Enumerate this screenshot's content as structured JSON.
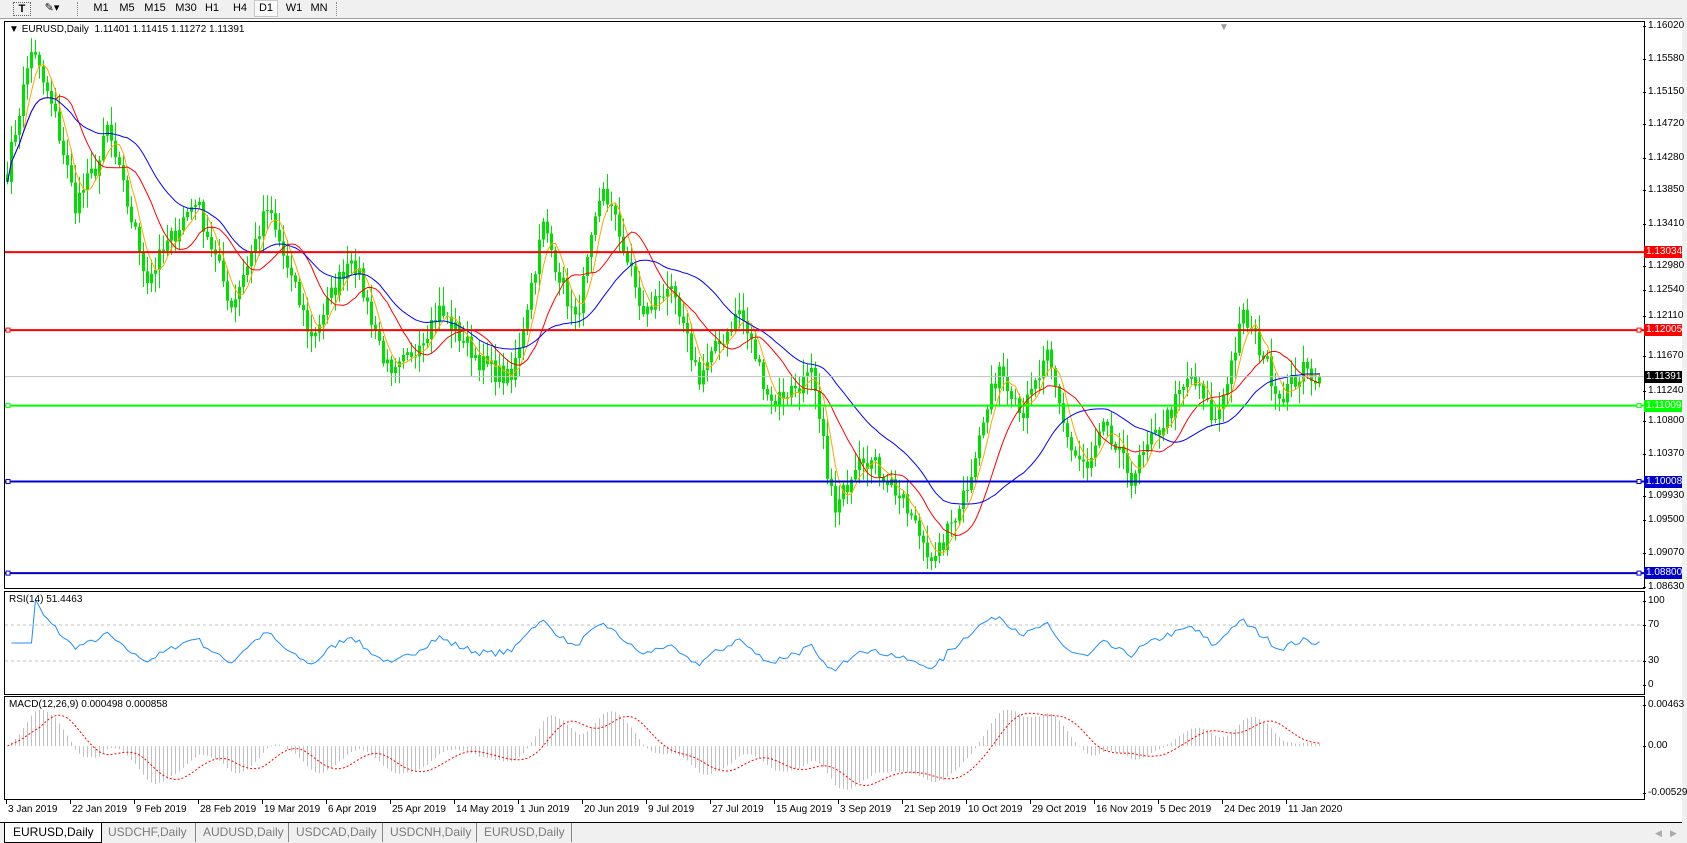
{
  "toolbar": {
    "icons": [
      "text-tool-icon",
      "line-tools-icon"
    ],
    "timeframes": [
      "M1",
      "M5",
      "M15",
      "M30",
      "H1",
      "H4",
      "D1",
      "W1",
      "MN"
    ],
    "active_timeframe": "D1"
  },
  "main": {
    "title": "EURUSD,Daily",
    "ohlc": "1.11401 1.11415 1.11272 1.11391",
    "price_axis": [
      "1.16020",
      "1.15580",
      "1.15150",
      "1.14720",
      "1.14280",
      "1.13850",
      "1.13410",
      "1.12980",
      "1.12540",
      "1.12110",
      "1.11670",
      "1.11240",
      "1.10800",
      "1.10370",
      "1.09930",
      "1.09500",
      "1.09070",
      "1.08630"
    ],
    "current_price": "1.11391",
    "levels": [
      {
        "price": "1.13034",
        "color": "#ff0000"
      },
      {
        "price": "1.12005",
        "color": "#ff0000"
      },
      {
        "price": "1.11009",
        "color": "#00ff00"
      },
      {
        "price": "1.10008",
        "color": "#0000cc"
      },
      {
        "price": "1.08800",
        "color": "#0000cc"
      }
    ]
  },
  "rsi": {
    "title": "RSI(14) 51.4463",
    "axis": [
      "100",
      "70",
      "30",
      "0"
    ]
  },
  "macd": {
    "title": "MACD(12,26,9) 0.000498 0.000858",
    "axis": [
      "0.00463",
      "0.00",
      "-0.00529"
    ]
  },
  "dates": [
    "3 Jan 2019",
    "22 Jan 2019",
    "9 Feb 2019",
    "28 Feb 2019",
    "19 Mar 2019",
    "6 Apr 2019",
    "25 Apr 2019",
    "14 May 2019",
    "1 Jun 2019",
    "20 Jun 2019",
    "9 Jul 2019",
    "27 Jul 2019",
    "15 Aug 2019",
    "3 Sep 2019",
    "21 Sep 2019",
    "10 Oct 2019",
    "29 Oct 2019",
    "16 Nov 2019",
    "5 Dec 2019",
    "24 Dec 2019",
    "11 Jan 2020"
  ],
  "tabs": [
    "EURUSD,Daily",
    "USDCHF,Daily",
    "AUDUSD,Daily",
    "USDCAD,Daily",
    "USDCNH,Daily",
    "EURUSD,Daily"
  ],
  "active_tab": 0,
  "colors": {
    "candle": "#00e000",
    "ma_fast": "#ffa500",
    "ma_mid": "#ff0000",
    "ma_slow": "#0000ff",
    "rsi": "#1e90ff",
    "macd_hist": "#c0c0c0",
    "macd_signal": "#ff0000"
  },
  "chart_data": {
    "type": "candlestick",
    "symbol": "EURUSD",
    "timeframe": "Daily",
    "ylim": [
      1.0863,
      1.1602
    ],
    "approx_close_path": [
      [
        0,
        1.141
      ],
      [
        6,
        1.1572
      ],
      [
        12,
        1.148
      ],
      [
        17,
        1.1367
      ],
      [
        23,
        1.1424
      ],
      [
        25,
        1.1466
      ],
      [
        35,
        1.1268
      ],
      [
        47,
        1.1374
      ],
      [
        56,
        1.1233
      ],
      [
        65,
        1.136
      ],
      [
        76,
        1.119
      ],
      [
        86,
        1.1302
      ],
      [
        96,
        1.1133
      ],
      [
        108,
        1.1226
      ],
      [
        119,
        1.1155
      ],
      [
        126,
        1.1133
      ],
      [
        134,
        1.1338
      ],
      [
        142,
        1.121
      ],
      [
        149,
        1.1389
      ],
      [
        154,
        1.1311
      ],
      [
        159,
        1.1218
      ],
      [
        165,
        1.126
      ],
      [
        173,
        1.1139
      ],
      [
        183,
        1.1226
      ],
      [
        191,
        1.1106
      ],
      [
        201,
        1.1139
      ],
      [
        207,
        1.0957
      ],
      [
        213,
        1.1042
      ],
      [
        221,
        1.0999
      ],
      [
        232,
        1.0894
      ],
      [
        240,
        1.0999
      ],
      [
        248,
        1.1155
      ],
      [
        254,
        1.1092
      ],
      [
        260,
        1.1162
      ],
      [
        266,
        1.1042
      ],
      [
        270,
        1.1014
      ],
      [
        274,
        1.107
      ],
      [
        281,
        1.1007
      ],
      [
        288,
        1.107
      ],
      [
        296,
        1.1139
      ],
      [
        302,
        1.1078
      ],
      [
        309,
        1.1218
      ],
      [
        314,
        1.1168
      ],
      [
        318,
        1.1113
      ],
      [
        324,
        1.1146
      ],
      [
        328,
        1.11391
      ]
    ]
  }
}
